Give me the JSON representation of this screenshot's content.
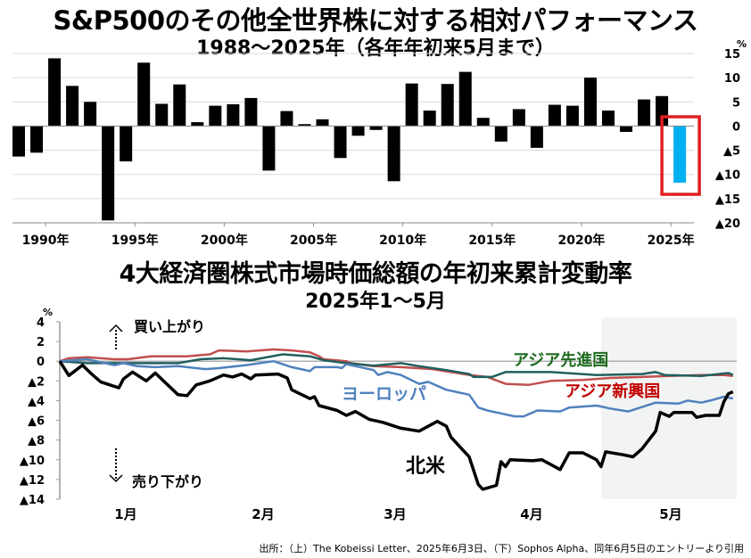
{
  "titles": {
    "top_title": "S&P500のその他全世界株に対する相対パフォーマンス",
    "top_subtitle": "1988～2025年（各年年初来5月まで）",
    "bottom_title": "4大経済圏株式市場時価総額の年初来累計変動率",
    "bottom_subtitle": "2025年1～5月"
  },
  "footer": "出所：（上）The Kobeissi Letter、2025年6月3日、（下）Sophos Alpha、同年6月5日のエントリーより引用",
  "chart_data": [
    {
      "type": "bar",
      "unit": "%",
      "ylim": [
        -20,
        15
      ],
      "yticks": [
        15,
        10,
        5,
        0,
        -5,
        -10,
        -15,
        -20
      ],
      "ytick_labels": [
        "15",
        "10",
        "5",
        "0",
        "▲5",
        "▲10",
        "▲15",
        "▲20"
      ],
      "xtick_labels": [
        "1990年",
        "1995年",
        "2000年",
        "2005年",
        "2010年",
        "2015年",
        "2020年",
        "2025年"
      ],
      "xtick_years": [
        1990,
        1995,
        2000,
        2005,
        2010,
        2015,
        2020,
        2025
      ],
      "grid": true,
      "categories": [
        1988,
        1989,
        1990,
        1991,
        1992,
        1993,
        1994,
        1995,
        1996,
        1997,
        1998,
        1999,
        2000,
        2001,
        2002,
        2003,
        2004,
        2005,
        2006,
        2007,
        2008,
        2009,
        2010,
        2011,
        2012,
        2013,
        2014,
        2015,
        2016,
        2017,
        2018,
        2019,
        2020,
        2021,
        2022,
        2023,
        2024,
        2025
      ],
      "values": [
        -6.3,
        -5.5,
        14.0,
        8.3,
        5.0,
        -19.5,
        -7.3,
        13.1,
        4.6,
        8.6,
        0.8,
        4.2,
        4.5,
        5.8,
        -9.2,
        3.1,
        0.4,
        1.4,
        -6.6,
        -2.0,
        -0.8,
        -11.4,
        8.8,
        3.2,
        8.7,
        11.2,
        1.7,
        -3.2,
        3.5,
        -4.5,
        4.4,
        4.2,
        10.0,
        3.2,
        -1.2,
        5.5,
        6.2,
        -11.7
      ],
      "colors": {
        "bar": "#000000",
        "highlight": "#00b0f0",
        "highlight_box": "#e02020"
      },
      "highlight_category": 2025
    },
    {
      "type": "line",
      "unit": "%",
      "ylim": [
        -14,
        4
      ],
      "yticks": [
        4,
        2,
        0,
        -2,
        -4,
        -6,
        -8,
        -10,
        -12,
        -14
      ],
      "ytick_labels": [
        "4",
        "2",
        "0",
        "▲2",
        "▲4",
        "▲6",
        "▲8",
        "▲10",
        "▲12",
        "▲14"
      ],
      "xtick_labels": [
        "1月",
        "2月",
        "3月",
        "4月",
        "5月"
      ],
      "annotations": {
        "up": "買い上がり",
        "down": "売り下がり"
      },
      "shaded_from": "04-30",
      "series": [
        {
          "name": "北米",
          "color": "#000000",
          "width": 3.5,
          "x": [
            "01-01",
            "01-03",
            "01-06",
            "01-08",
            "01-10",
            "01-14",
            "01-15",
            "01-17",
            "01-20",
            "01-22",
            "01-27",
            "01-29",
            "01-31",
            "02-03",
            "02-06",
            "02-08",
            "02-10",
            "02-12",
            "02-13",
            "02-18",
            "02-20",
            "02-21",
            "02-25",
            "02-26",
            "02-27",
            "03-03",
            "03-05",
            "03-07",
            "03-10",
            "03-13",
            "03-17",
            "03-21",
            "03-25",
            "03-27",
            "03-28",
            "04-01",
            "04-03",
            "04-04",
            "04-07",
            "04-08",
            "04-09",
            "04-10",
            "04-15",
            "04-17",
            "04-21",
            "04-23",
            "04-26",
            "04-29",
            "04-30",
            "05-01",
            "05-05",
            "05-07",
            "05-09",
            "05-12",
            "05-13",
            "05-15",
            "05-16",
            "05-20",
            "05-21",
            "05-23",
            "05-26",
            "05-27",
            "05-28",
            "05-29"
          ],
          "y": [
            0,
            -1.45,
            -0.4,
            -1.3,
            -2.1,
            -2.7,
            -1.8,
            -1.1,
            -2.0,
            -1.2,
            -3.4,
            -3.5,
            -2.4,
            -2.0,
            -1.4,
            -1.6,
            -1.3,
            -1.8,
            -1.4,
            -1.3,
            -1.7,
            -2.9,
            -3.8,
            -3.6,
            -4.5,
            -5.0,
            -5.5,
            -5.1,
            -5.9,
            -6.2,
            -6.8,
            -7.1,
            -6.1,
            -6.6,
            -7.7,
            -9.7,
            -12.5,
            -13.0,
            -12.6,
            -10.2,
            -10.7,
            -10.0,
            -10.1,
            -10.0,
            -11.0,
            -9.3,
            -9.3,
            -10.0,
            -10.7,
            -9.2,
            -9.5,
            -9.7,
            -8.9,
            -7.1,
            -5.2,
            -5.6,
            -5.2,
            -5.2,
            -5.7,
            -5.5,
            -5.5,
            -4.1,
            -3.3,
            -3.1
          ]
        },
        {
          "name": "ヨーロッパ",
          "color": "#4f81bd",
          "width": 2.5,
          "x": [
            "01-01",
            "01-07",
            "01-13",
            "01-15",
            "01-18",
            "01-22",
            "01-27",
            "02-02",
            "02-05",
            "02-11",
            "02-17",
            "02-21",
            "02-25",
            "02-26",
            "03-03",
            "03-04",
            "03-05",
            "03-11",
            "03-12",
            "03-14",
            "03-17",
            "03-21",
            "03-23",
            "03-27",
            "04-01",
            "04-03",
            "04-05",
            "04-08",
            "04-11",
            "04-13",
            "04-16",
            "04-21",
            "04-23",
            "04-29",
            "05-02",
            "05-06",
            "05-12",
            "05-17",
            "05-19",
            "05-22",
            "05-24",
            "05-27",
            "05-29"
          ],
          "y": [
            0,
            0.2,
            -0.4,
            -0.2,
            -0.5,
            -0.6,
            -0.5,
            -0.8,
            -0.7,
            -0.4,
            0,
            -0.6,
            -1.0,
            -0.6,
            -0.6,
            -0.7,
            -0.3,
            -0.9,
            -1.4,
            -1.1,
            -1.4,
            -2.3,
            -2.1,
            -2.9,
            -3.4,
            -4.7,
            -5.0,
            -5.3,
            -5.6,
            -5.6,
            -5.0,
            -5.1,
            -4.7,
            -4.5,
            -4.8,
            -5.1,
            -4.2,
            -4.3,
            -4.0,
            -4.2,
            -4.0,
            -3.6,
            -3.8
          ]
        },
        {
          "name": "アジア新興国",
          "color": "#c0504d",
          "width": 2.5,
          "x": [
            "01-01",
            "01-03",
            "01-07",
            "01-13",
            "01-16",
            "01-21",
            "01-27",
            "01-29",
            "02-03",
            "02-05",
            "02-11",
            "02-17",
            "02-21",
            "02-25",
            "02-27",
            "02-28",
            "03-05",
            "03-06",
            "03-11",
            "03-17",
            "03-24",
            "04-01",
            "04-05",
            "04-09",
            "04-14",
            "04-19",
            "04-26",
            "05-02",
            "05-09",
            "05-15",
            "05-22",
            "05-27",
            "05-29"
          ],
          "y": [
            0,
            0.3,
            0.4,
            0.2,
            0.2,
            0.5,
            0.5,
            0.5,
            0.7,
            1.1,
            1.0,
            1.2,
            1.1,
            0.9,
            0.5,
            0.2,
            0,
            -0.2,
            -0.5,
            -0.6,
            -0.8,
            -1.4,
            -1.6,
            -2.3,
            -2.4,
            -2.0,
            -1.9,
            -1.7,
            -1.6,
            -1.5,
            -1.4,
            -1.4,
            -1.5
          ]
        },
        {
          "name": "アジア先進国",
          "color": "#215e5e",
          "width": 2.5,
          "x": [
            "01-01",
            "01-07",
            "01-16",
            "01-27",
            "02-01",
            "02-06",
            "02-12",
            "02-19",
            "02-25",
            "02-28",
            "03-05",
            "03-11",
            "03-17",
            "03-21",
            "03-27",
            "04-01",
            "04-02",
            "04-06",
            "04-09",
            "04-19",
            "04-29",
            "05-09",
            "05-12",
            "05-14",
            "05-22",
            "05-28",
            "05-29"
          ],
          "y": [
            0,
            -0.2,
            -0.2,
            -0.2,
            0.2,
            0.3,
            0.1,
            0.7,
            0.5,
            0.1,
            -0.2,
            -0.45,
            -0.2,
            -0.5,
            -0.9,
            -1.3,
            -1.6,
            -1.6,
            -1.1,
            -1.1,
            -1.4,
            -1.3,
            -1.1,
            -1.4,
            -1.5,
            -1.2,
            -1.4
          ]
        }
      ],
      "label_colors": {
        "北米": "#000000",
        "ヨーロッパ": "#4f81bd",
        "アジア新興国": "#c00000",
        "アジア先進国": "#1e6b1e"
      }
    }
  ]
}
